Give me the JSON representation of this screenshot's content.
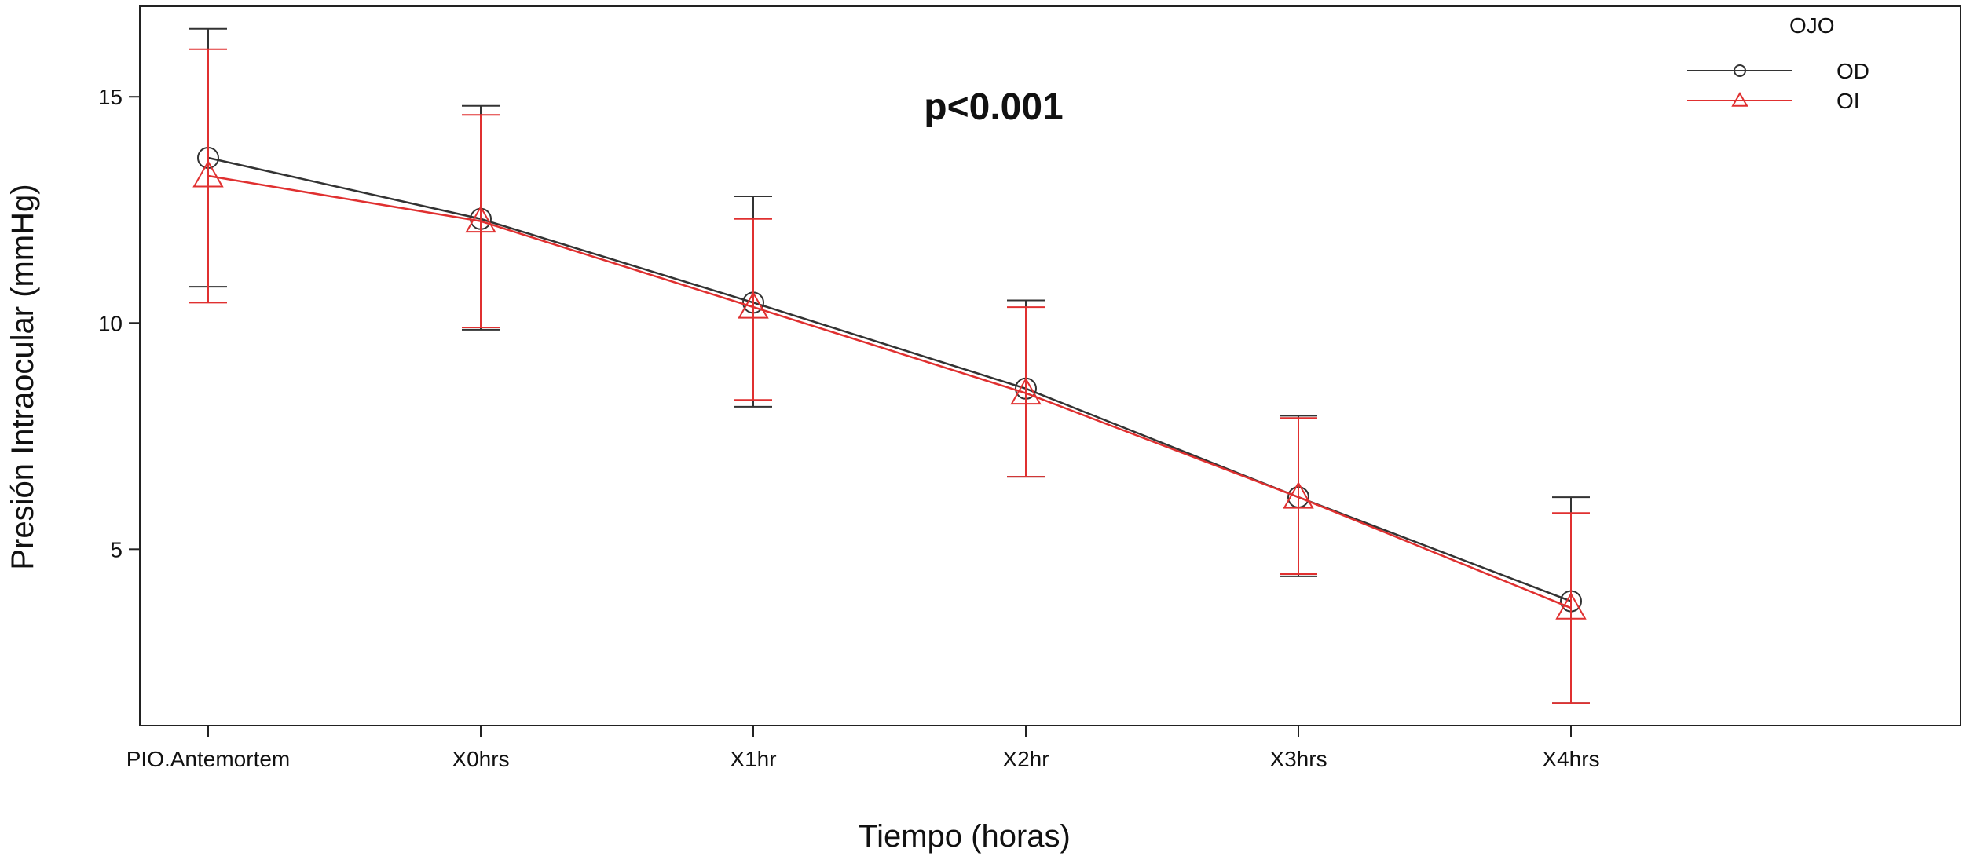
{
  "chart_data": {
    "type": "line",
    "title": "",
    "annotation": "p<0.001",
    "xlabel": "Tiempo (horas)",
    "ylabel": "Presión Intraocular (mmHg)",
    "categories": [
      "PIO.Antemortem",
      "X0hrs",
      "X1hr",
      "X2hr",
      "X3hrs",
      "X4hrs"
    ],
    "yticks": [
      5,
      10,
      15
    ],
    "ylim": [
      1.1,
      17.0
    ],
    "grid": false,
    "legend": {
      "title": "OJO",
      "position": "top-right"
    },
    "series": [
      {
        "name": "OD",
        "color": "#333333",
        "marker": "circle",
        "values": [
          13.65,
          12.3,
          10.45,
          8.55,
          6.15,
          3.85
        ],
        "lower": [
          10.8,
          9.85,
          8.15,
          6.6,
          4.4,
          1.6
        ],
        "upper": [
          16.5,
          14.8,
          12.8,
          10.5,
          7.95,
          6.15
        ]
      },
      {
        "name": "OI",
        "color": "#e03030",
        "marker": "triangle",
        "values": [
          13.25,
          12.25,
          10.35,
          8.45,
          6.15,
          3.7
        ],
        "lower": [
          10.45,
          9.9,
          8.3,
          6.6,
          4.45,
          1.6
        ],
        "upper": [
          16.05,
          14.6,
          12.3,
          10.35,
          7.9,
          5.8
        ]
      }
    ]
  }
}
